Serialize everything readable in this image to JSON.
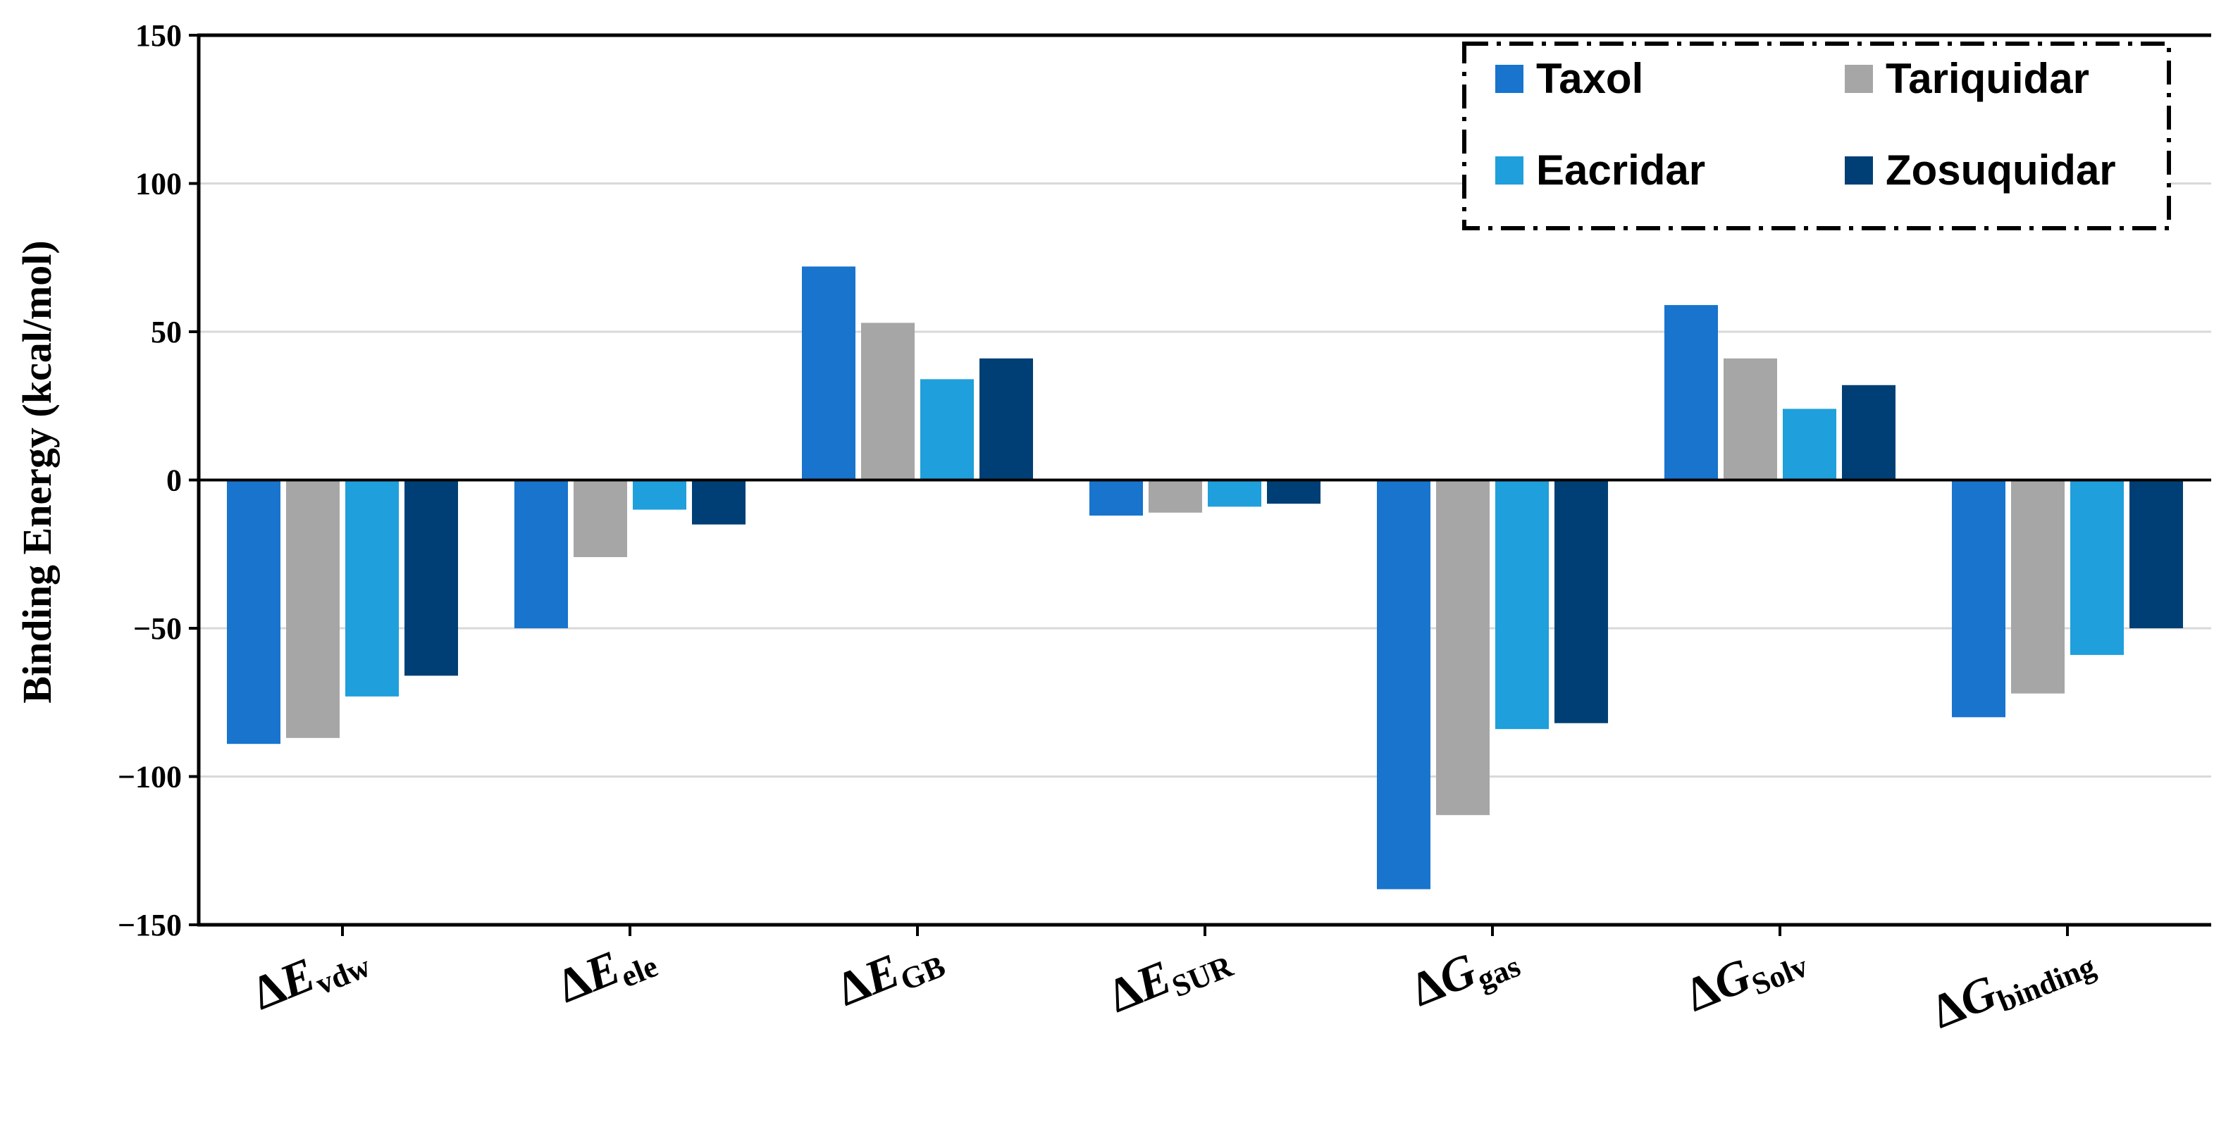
{
  "chart_data": {
    "type": "bar",
    "title": "",
    "ylabel": "Binding Energy (kcal/mol)",
    "xlabel": "",
    "ylim": [
      -150,
      150
    ],
    "yticks": [
      150,
      100,
      50,
      0,
      -50,
      -100,
      -150
    ],
    "ytick_labels": [
      "150",
      "100",
      "50",
      "0",
      "−50",
      "−100",
      "−150"
    ],
    "grid": true,
    "legend_position": "top-right",
    "categories": [
      {
        "symbol": "Δ",
        "letter": "E",
        "sub": "vdw"
      },
      {
        "symbol": "Δ",
        "letter": "E",
        "sub": "ele"
      },
      {
        "symbol": "Δ",
        "letter": "E",
        "sub": "GB"
      },
      {
        "symbol": "Δ",
        "letter": "E",
        "sub": "SUR"
      },
      {
        "symbol": "Δ",
        "letter": "G",
        "sub": "gas"
      },
      {
        "symbol": "Δ",
        "letter": "G",
        "sub": "Solv"
      },
      {
        "symbol": "Δ",
        "letter": "G",
        "sub": "binding"
      }
    ],
    "series": [
      {
        "name": "Taxol",
        "color": "#1874CD",
        "values": [
          -89,
          -50,
          72,
          -12,
          -138,
          59,
          -80
        ]
      },
      {
        "name": "Tariquidar",
        "color": "#A6A6A6",
        "values": [
          -87,
          -26,
          53,
          -11,
          -113,
          41,
          -72
        ]
      },
      {
        "name": "Eacridar",
        "color": "#1F9FDB",
        "values": [
          -73,
          -10,
          34,
          -9,
          -84,
          24,
          -59
        ]
      },
      {
        "name": "Zosuquidar",
        "color": "#003F75",
        "values": [
          -66,
          -15,
          41,
          -8,
          -82,
          32,
          -50
        ]
      }
    ]
  }
}
